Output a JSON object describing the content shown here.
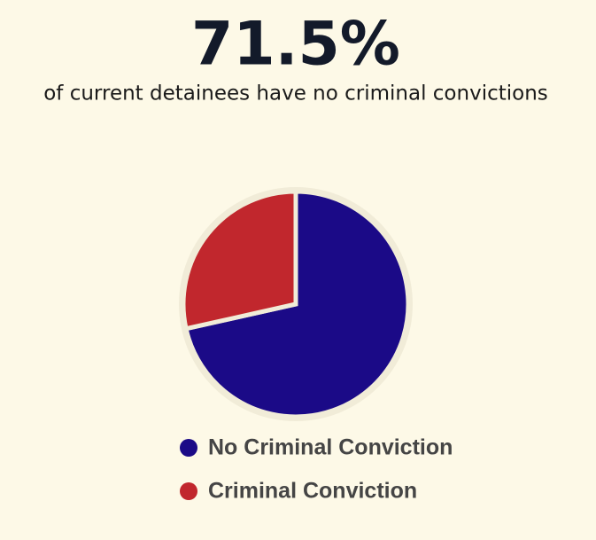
{
  "chart_data": {
    "type": "pie",
    "title": "71.5%",
    "subtitle": "of current detainees have no criminal convictions",
    "categories": [
      "No Criminal Conviction",
      "Criminal Conviction"
    ],
    "values": [
      71.5,
      28.5
    ],
    "colors": [
      "#1b0a87",
      "#c1272d"
    ]
  }
}
